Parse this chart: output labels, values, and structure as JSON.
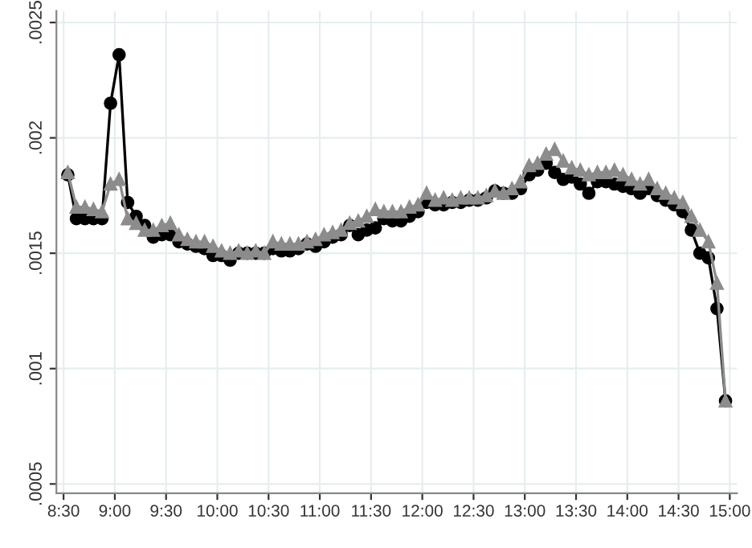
{
  "chart_data": {
    "type": "line",
    "x": [
      8.5417,
      8.625,
      8.7083,
      8.7917,
      8.875,
      8.9583,
      9.0417,
      9.125,
      9.2083,
      9.2917,
      9.375,
      9.4583,
      9.5417,
      9.625,
      9.7083,
      9.7917,
      9.875,
      9.9583,
      10.0417,
      10.125,
      10.2083,
      10.2917,
      10.375,
      10.4583,
      10.5417,
      10.625,
      10.7083,
      10.7917,
      10.875,
      10.9583,
      11.0417,
      11.125,
      11.2083,
      11.2917,
      11.375,
      11.4583,
      11.5417,
      11.625,
      11.7083,
      11.7917,
      11.875,
      11.9583,
      12.0417,
      12.125,
      12.2083,
      12.2917,
      12.375,
      12.4583,
      12.5417,
      12.625,
      12.7083,
      12.7917,
      12.875,
      12.9583,
      13.0417,
      13.125,
      13.2083,
      13.2917,
      13.375,
      13.4583,
      13.5417,
      13.625,
      13.7083,
      13.7917,
      13.875,
      13.9583,
      14.0417,
      14.125,
      14.2083,
      14.2917,
      14.375,
      14.4583,
      14.5417,
      14.625,
      14.7083,
      14.7917,
      14.875,
      14.9583
    ],
    "series": [
      {
        "color": "#000000",
        "marker": "circle",
        "values": [
          0.00184,
          0.00165,
          0.00165,
          0.00165,
          0.00165,
          0.00215,
          0.00236,
          0.00172,
          0.00166,
          0.00162,
          0.00157,
          0.00158,
          0.00158,
          0.00155,
          0.00154,
          0.00153,
          0.00152,
          0.00149,
          0.00149,
          0.00147,
          0.0015,
          0.0015,
          0.0015,
          0.0015,
          0.00152,
          0.00151,
          0.00151,
          0.00152,
          0.00154,
          0.00153,
          0.00155,
          0.00157,
          0.00158,
          0.00162,
          0.00158,
          0.0016,
          0.00161,
          0.00165,
          0.00164,
          0.00164,
          0.00166,
          0.00168,
          0.00172,
          0.00171,
          0.00171,
          0.00172,
          0.00172,
          0.00173,
          0.00173,
          0.00174,
          0.00177,
          0.00176,
          0.00176,
          0.00178,
          0.00184,
          0.00186,
          0.00189,
          0.00185,
          0.00182,
          0.00183,
          0.0018,
          0.00176,
          0.00181,
          0.00181,
          0.0018,
          0.00179,
          0.00178,
          0.00176,
          0.00178,
          0.00175,
          0.00173,
          0.00171,
          0.00168,
          0.0016,
          0.0015,
          0.00148,
          0.00126,
          0.00086
        ]
      },
      {
        "color": "#8c8c8c",
        "marker": "triangle",
        "values": [
          0.00185,
          0.0017,
          0.0017,
          0.00169,
          0.00168,
          0.0018,
          0.00182,
          0.00165,
          0.00163,
          0.0016,
          0.0016,
          0.00162,
          0.00163,
          0.00158,
          0.00156,
          0.00155,
          0.00155,
          0.00153,
          0.00151,
          0.0015,
          0.00151,
          0.0015,
          0.00151,
          0.0015,
          0.00155,
          0.00154,
          0.00154,
          0.00154,
          0.00155,
          0.00156,
          0.00158,
          0.00159,
          0.0016,
          0.00163,
          0.00164,
          0.00166,
          0.00169,
          0.00168,
          0.00168,
          0.00168,
          0.0017,
          0.00171,
          0.00176,
          0.00173,
          0.00174,
          0.00173,
          0.00174,
          0.00174,
          0.00174,
          0.00175,
          0.00177,
          0.00176,
          0.00178,
          0.00181,
          0.00188,
          0.00189,
          0.00193,
          0.00195,
          0.0019,
          0.00187,
          0.00186,
          0.00184,
          0.00185,
          0.00185,
          0.00186,
          0.00184,
          0.00182,
          0.0018,
          0.00182,
          0.00178,
          0.00176,
          0.00174,
          0.00172,
          0.00166,
          0.0016,
          0.00155,
          0.00137,
          0.00086
        ]
      }
    ],
    "xlim": [
      8.43,
      15.07
    ],
    "xticks": [
      {
        "value": 8.5,
        "label": "8:30"
      },
      {
        "value": 9,
        "label": "9:00"
      },
      {
        "value": 9.5,
        "label": "9:30"
      },
      {
        "value": 10,
        "label": "10:00"
      },
      {
        "value": 10.5,
        "label": "10:30"
      },
      {
        "value": 11,
        "label": "11:00"
      },
      {
        "value": 11.5,
        "label": "11:30"
      },
      {
        "value": 12,
        "label": "12:00"
      },
      {
        "value": 12.5,
        "label": "12:30"
      },
      {
        "value": 13,
        "label": "13:00"
      },
      {
        "value": 13.5,
        "label": "13:30"
      },
      {
        "value": 14,
        "label": "14:00"
      },
      {
        "value": 14.5,
        "label": "14:30"
      },
      {
        "value": 15,
        "label": "15:00"
      }
    ],
    "ylim": [
      0.00046,
      0.00255
    ],
    "yticks": [
      {
        "value": 0.0005,
        "label": ".0005"
      },
      {
        "value": 0.001,
        "label": ".001"
      },
      {
        "value": 0.0015,
        "label": ".0015"
      },
      {
        "value": 0.002,
        "label": ".002"
      },
      {
        "value": 0.0025,
        "label": ".0025"
      }
    ],
    "grid": true
  }
}
